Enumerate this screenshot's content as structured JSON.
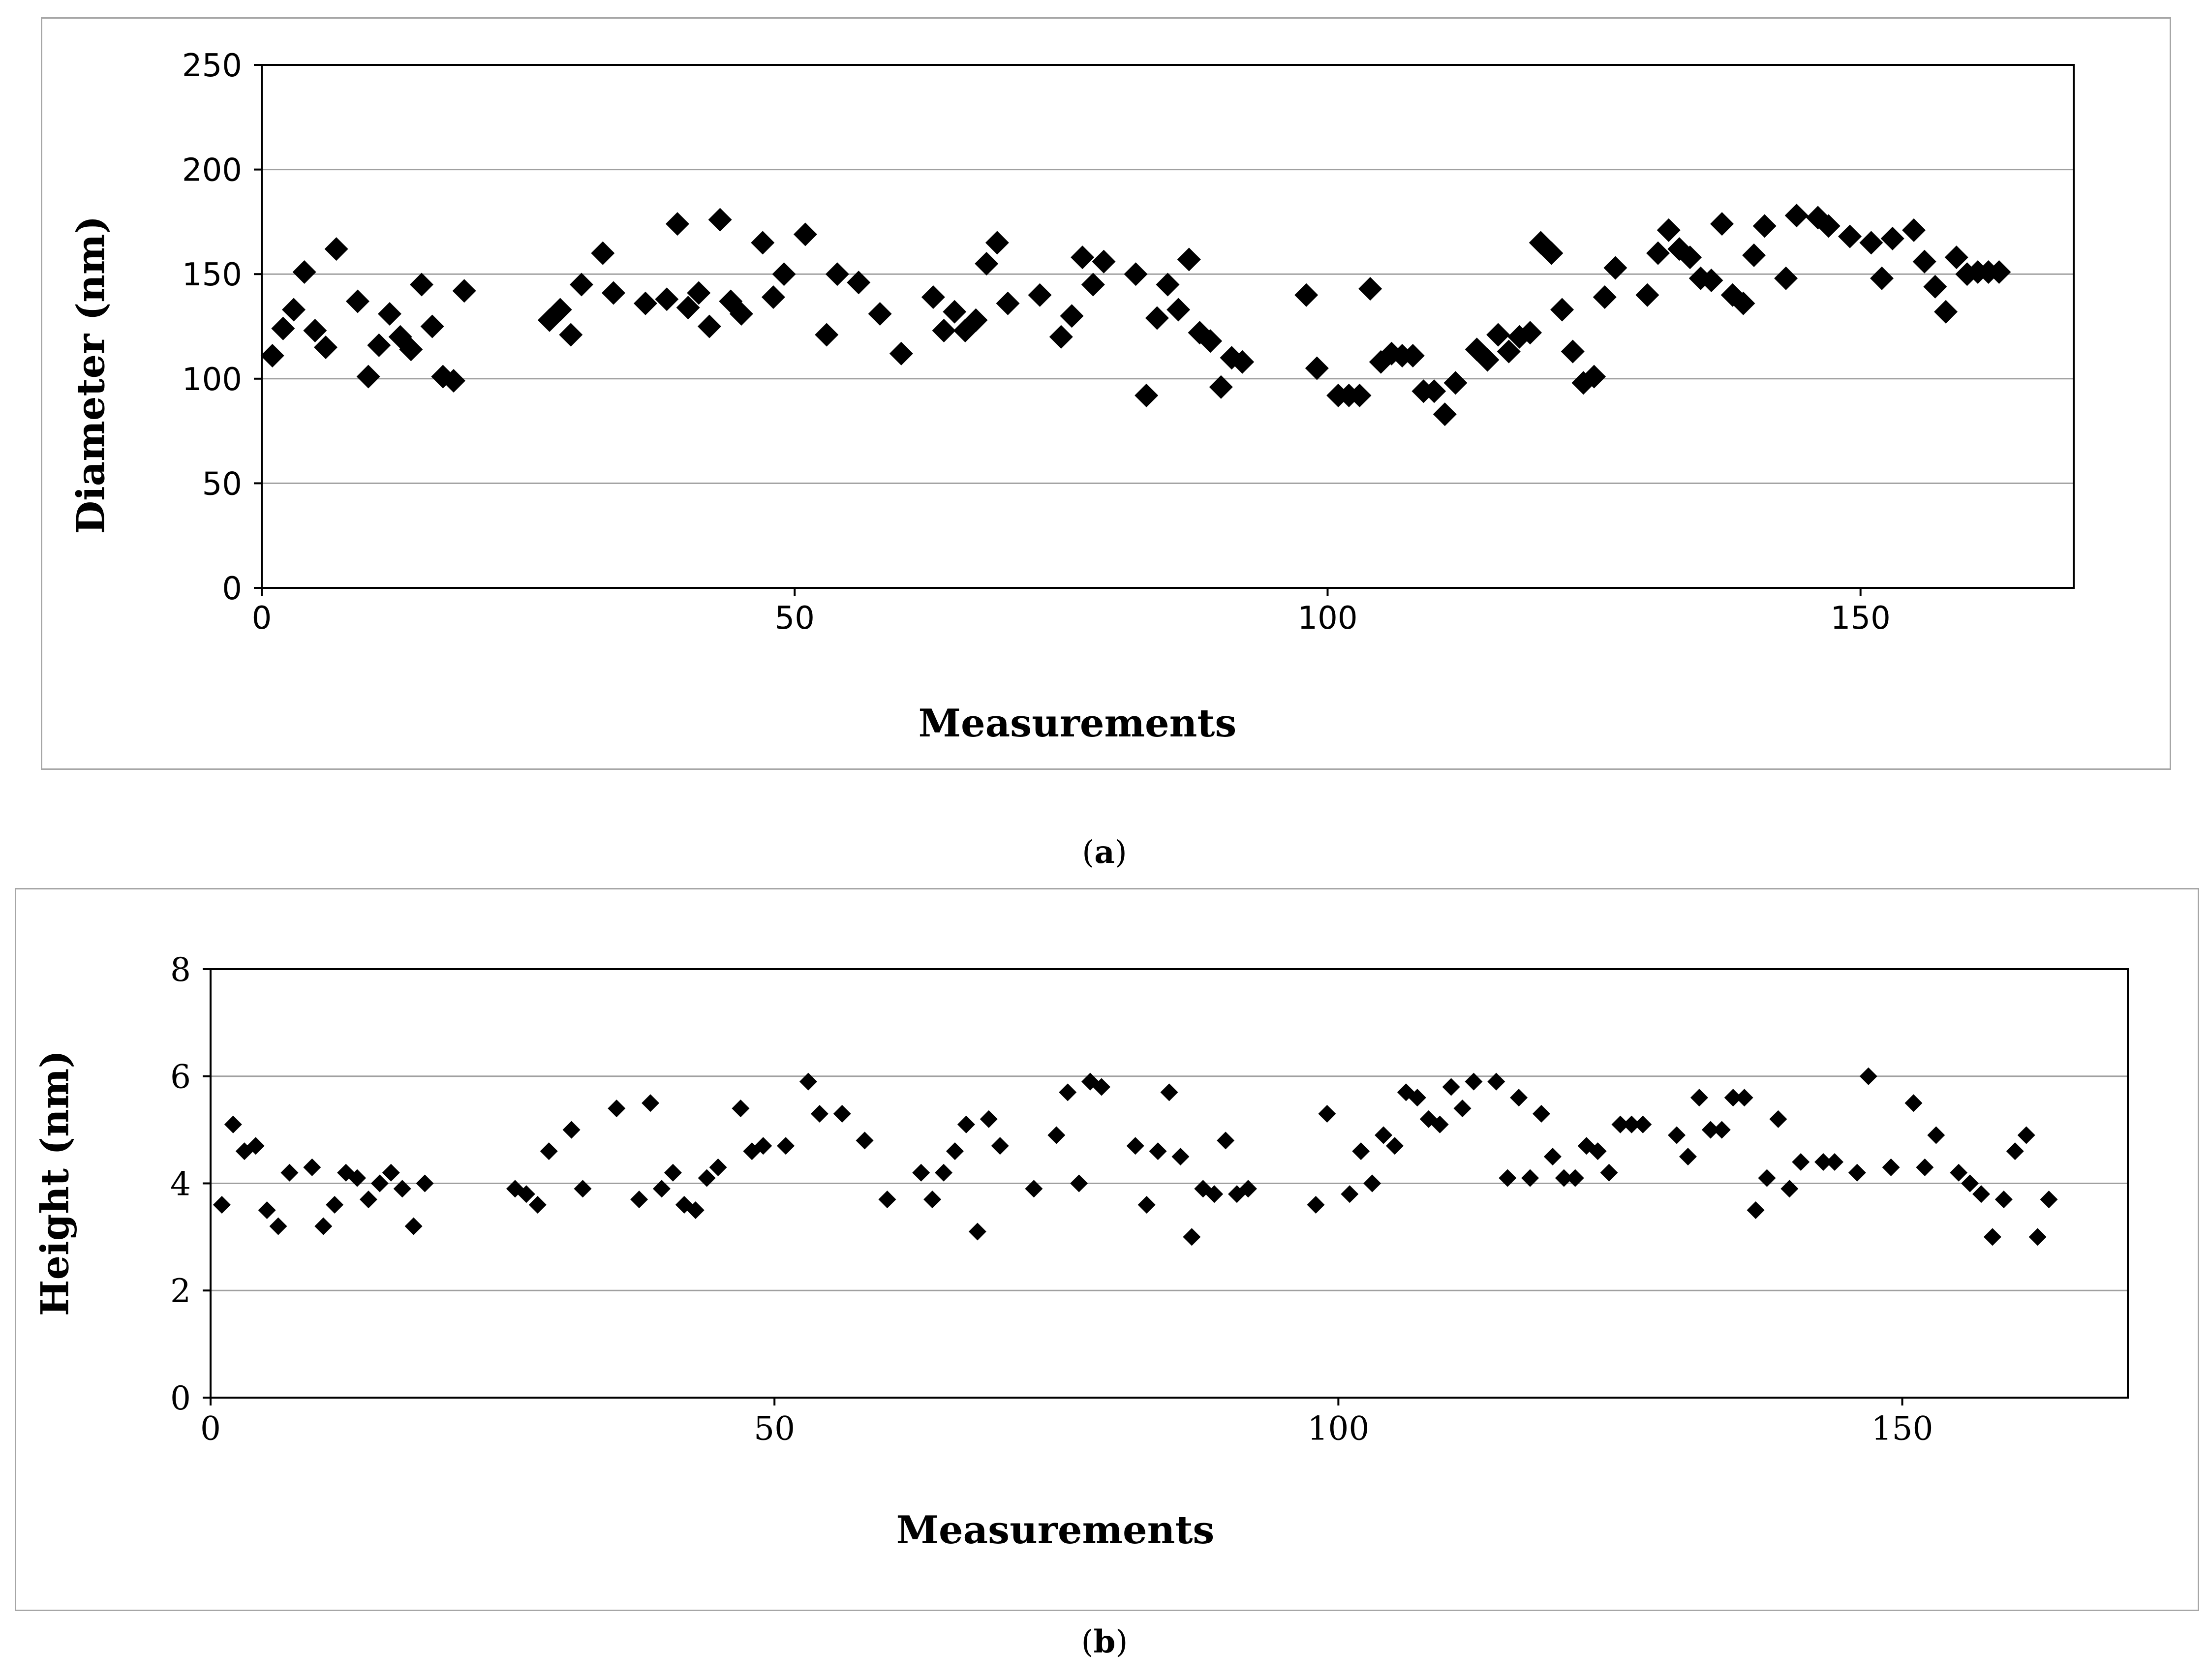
{
  "chart_data": [
    {
      "type": "scatter",
      "panel": "a",
      "title": "",
      "xlabel": "Measurements",
      "ylabel": "Diameter (nm)",
      "xlim": [
        0,
        170
      ],
      "ylim": [
        0,
        250
      ],
      "xticks": [
        0,
        50,
        100,
        150
      ],
      "yticks": [
        0,
        50,
        100,
        150,
        200,
        250
      ],
      "grid": true,
      "marker": "diamond",
      "marker_color": "#000000",
      "x": [
        1,
        2,
        3,
        4,
        5,
        6,
        7,
        9,
        10,
        11,
        12,
        13,
        14,
        15,
        16,
        17,
        18,
        19,
        27,
        28,
        29,
        30,
        32,
        33,
        36,
        38,
        39,
        40,
        41,
        42,
        43,
        44,
        45,
        47,
        48,
        49,
        51,
        53,
        54,
        56,
        58,
        60,
        63,
        64,
        65,
        66,
        67,
        68,
        69,
        70,
        73,
        75,
        76,
        77,
        78,
        79,
        82,
        83,
        84,
        85,
        86,
        87,
        88,
        89,
        90,
        91,
        92,
        98,
        99,
        101,
        102,
        103,
        104,
        105,
        106,
        107,
        108,
        109,
        110,
        111,
        112,
        114,
        115,
        116,
        117,
        118,
        119,
        120,
        121,
        122,
        123,
        124,
        125,
        126,
        127,
        130,
        131,
        132,
        133,
        134,
        135,
        136,
        137,
        138,
        139,
        140,
        141,
        143,
        144,
        146,
        147,
        149,
        151,
        152,
        153,
        155,
        156,
        157,
        158,
        159,
        160,
        161,
        162,
        163
      ],
      "y": [
        111,
        124,
        133,
        151,
        123,
        115,
        162,
        137,
        101,
        116,
        131,
        120,
        114,
        145,
        125,
        101,
        99,
        142,
        128,
        133,
        121,
        145,
        160,
        141,
        136,
        138,
        174,
        134,
        141,
        125,
        176,
        137,
        131,
        165,
        139,
        150,
        169,
        121,
        150,
        146,
        131,
        112,
        139,
        123,
        132,
        123,
        128,
        155,
        165,
        136,
        140,
        120,
        130,
        158,
        145,
        156,
        150,
        92,
        129,
        145,
        133,
        157,
        122,
        118,
        96,
        110,
        108,
        140,
        105,
        92,
        92,
        92,
        143,
        108,
        112,
        111,
        111,
        94,
        94,
        83,
        98,
        114,
        109,
        121,
        113,
        120,
        122,
        165,
        160,
        133,
        113,
        98,
        101,
        139,
        153,
        140,
        160,
        171,
        162,
        158,
        148,
        147,
        174,
        140,
        136,
        159,
        173,
        148,
        178,
        177,
        173,
        168,
        165,
        148,
        167,
        171,
        156,
        144,
        132,
        158,
        150,
        151,
        151,
        151
      ]
    },
    {
      "type": "scatter",
      "panel": "b",
      "title": "",
      "xlabel": "Measurements",
      "ylabel": "Height  (nm)",
      "xlim": [
        0,
        170
      ],
      "ylim": [
        0,
        8
      ],
      "xticks": [
        0,
        50,
        100,
        150
      ],
      "yticks": [
        0,
        2,
        4,
        6,
        8
      ],
      "grid": true,
      "marker": "diamond",
      "marker_color": "#000000",
      "x": [
        1,
        2,
        3,
        4,
        5,
        6,
        7,
        9,
        10,
        11,
        12,
        13,
        14,
        15,
        16,
        17,
        18,
        19,
        27,
        28,
        29,
        30,
        32,
        33,
        36,
        38,
        39,
        40,
        41,
        42,
        43,
        44,
        45,
        47,
        48,
        49,
        51,
        53,
        54,
        56,
        58,
        60,
        63,
        64,
        65,
        66,
        67,
        68,
        69,
        70,
        73,
        75,
        76,
        77,
        78,
        79,
        82,
        83,
        84,
        85,
        86,
        87,
        88,
        89,
        90,
        91,
        92,
        98,
        99,
        101,
        102,
        103,
        104,
        105,
        106,
        107,
        108,
        109,
        110,
        111,
        112,
        114,
        115,
        116,
        117,
        118,
        119,
        120,
        121,
        122,
        123,
        124,
        125,
        126,
        127,
        130,
        131,
        132,
        133,
        134,
        135,
        136,
        137,
        138,
        139,
        140,
        141,
        143,
        144,
        146,
        147,
        149,
        151,
        152,
        153,
        155,
        156,
        157,
        158,
        159,
        160,
        161,
        162,
        163
      ],
      "y": [
        3.6,
        5.1,
        4.6,
        4.7,
        3.5,
        3.2,
        4.2,
        4.3,
        3.2,
        3.6,
        4.2,
        4.1,
        3.7,
        4.0,
        4.2,
        3.9,
        3.2,
        4.0,
        3.9,
        3.8,
        3.6,
        4.6,
        5.0,
        3.9,
        5.4,
        3.7,
        5.5,
        3.9,
        4.2,
        3.6,
        3.5,
        4.1,
        4.3,
        5.4,
        4.6,
        4.7,
        4.7,
        5.9,
        5.3,
        5.3,
        4.8,
        3.7,
        4.2,
        3.7,
        4.2,
        4.6,
        5.1,
        3.1,
        5.2,
        4.7,
        3.9,
        4.9,
        5.7,
        4.0,
        5.9,
        5.8,
        4.7,
        3.6,
        4.6,
        5.7,
        4.5,
        3.0,
        3.9,
        3.8,
        4.8,
        3.8,
        3.9,
        3.6,
        5.3,
        3.8,
        4.6,
        4.0,
        4.9,
        4.7,
        5.7,
        5.6,
        5.2,
        5.1,
        5.8,
        5.4,
        5.9,
        5.9,
        4.1,
        5.6,
        4.1,
        5.3,
        4.5,
        4.1,
        4.1,
        4.7,
        4.6,
        4.2,
        5.1,
        5.1,
        5.1,
        4.9,
        4.5,
        5.6,
        5.0,
        5.0,
        5.6,
        5.6,
        3.5,
        4.1,
        5.2,
        3.9,
        4.4,
        4.4,
        4.4,
        4.2,
        6.0,
        4.3,
        5.5,
        4.3,
        4.9,
        4.2,
        4.0,
        3.8,
        3.0,
        3.7,
        4.6,
        4.9,
        3.0,
        3.7
      ]
    }
  ],
  "captions": {
    "a": {
      "open": "(",
      "letter": "a",
      "close": ")"
    },
    "b": {
      "open": "(",
      "letter": "b",
      "close": ")"
    }
  }
}
